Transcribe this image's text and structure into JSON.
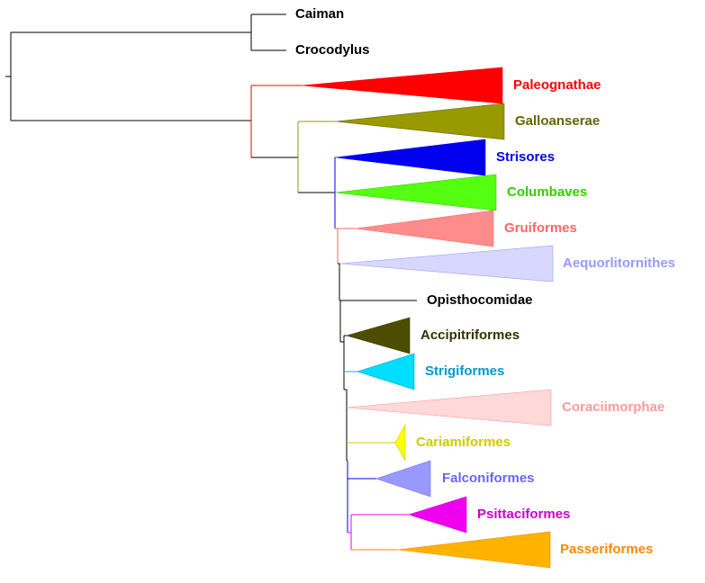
{
  "taxa": [
    {
      "id": "caiman",
      "label": "Caiman",
      "color": "#000000",
      "collapsed": false
    },
    {
      "id": "crocodylus",
      "label": "Crocodylus",
      "color": "#000000",
      "collapsed": false
    },
    {
      "id": "paleognathae",
      "label": "Paleognathae",
      "color": "#ff0000",
      "collapsed": true
    },
    {
      "id": "galloanserae",
      "label": "Galloanserae",
      "color": "#999900",
      "label_color": "#666600",
      "collapsed": true
    },
    {
      "id": "strisores",
      "label": "Strisores",
      "color": "#0000ee",
      "collapsed": true
    },
    {
      "id": "columbaves",
      "label": "Columbaves",
      "color": "#55ff11",
      "label_color": "#33cc00",
      "collapsed": true
    },
    {
      "id": "gruiformes",
      "label": "Gruiformes",
      "color": "#ff8c8c",
      "label_color": "#ff6666",
      "collapsed": true
    },
    {
      "id": "aequorlitornithes",
      "label": "Aequorlitornithes",
      "color": "#d8d8ff",
      "label_color": "#9999ff",
      "collapsed": true
    },
    {
      "id": "opisthocomidae",
      "label": "Opisthocomidae",
      "color": "#000000",
      "collapsed": false
    },
    {
      "id": "accipitriformes",
      "label": "Accipitriformes",
      "color": "#4d4d00",
      "label_color": "#333300",
      "collapsed": true
    },
    {
      "id": "strigiformes",
      "label": "Strigiformes",
      "color": "#00ddff",
      "label_color": "#0099cc",
      "collapsed": true
    },
    {
      "id": "coraciimorphae",
      "label": "Coraciimorphae",
      "color": "#ffd8d8",
      "label_color": "#ff9999",
      "collapsed": true
    },
    {
      "id": "cariamiformes",
      "label": "Cariamiformes",
      "color": "#ffff00",
      "label_color": "#cccc00",
      "collapsed": true
    },
    {
      "id": "falconiformes",
      "label": "Falconiformes",
      "color": "#9999ff",
      "label_color": "#6666ff",
      "collapsed": true
    },
    {
      "id": "psittaciformes",
      "label": "Psittaciformes",
      "color": "#ee00ee",
      "label_color": "#cc00cc",
      "collapsed": true
    },
    {
      "id": "passeriformes",
      "label": "Passeriformes",
      "color": "#ffb300",
      "label_color": "#ff8800",
      "collapsed": true
    }
  ],
  "branch_colors": {
    "neognathae": "#999900",
    "neoaves": "#0000ee",
    "core": "#ff6666",
    "australaves": "#0000ee",
    "telluraves": "#000000",
    "afroaves": "#000000",
    "strigi": "#00bbdd",
    "cariami": "#cccc00",
    "falcon": "#0000ee",
    "psittacopasserae": "#ee00ee",
    "passer": "#ff8800"
  }
}
